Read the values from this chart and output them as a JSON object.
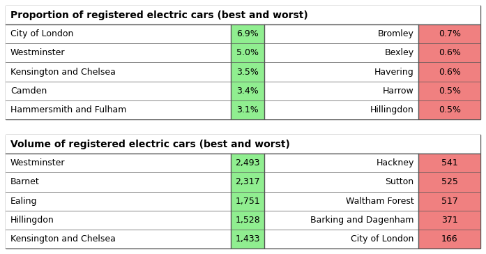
{
  "table1_title": "Proportion of registered electric cars (best and worst)",
  "table1_best": [
    [
      "City of London",
      "6.9%"
    ],
    [
      "Westminster",
      "5.0%"
    ],
    [
      "Kensington and Chelsea",
      "3.5%"
    ],
    [
      "Camden",
      "3.4%"
    ],
    [
      "Hammersmith and Fulham",
      "3.1%"
    ]
  ],
  "table1_worst": [
    [
      "Bromley",
      "0.7%"
    ],
    [
      "Bexley",
      "0.6%"
    ],
    [
      "Havering",
      "0.6%"
    ],
    [
      "Harrow",
      "0.5%"
    ],
    [
      "Hillingdon",
      "0.5%"
    ]
  ],
  "table2_title": "Volume of registered electric cars (best and worst)",
  "table2_best": [
    [
      "Westminster",
      "2,493"
    ],
    [
      "Barnet",
      "2,317"
    ],
    [
      "Ealing",
      "1,751"
    ],
    [
      "Hillingdon",
      "1,528"
    ],
    [
      "Kensington and Chelsea",
      "1,433"
    ]
  ],
  "table2_worst": [
    [
      "Hackney",
      "541"
    ],
    [
      "Sutton",
      "525"
    ],
    [
      "Waltham Forest",
      "517"
    ],
    [
      "Barking and Dagenham",
      "371"
    ],
    [
      "City of London",
      "166"
    ]
  ],
  "green_color": "#90EE90",
  "red_color": "#F08080",
  "border_color": "#555555",
  "font_size": 9.0,
  "title_font_size": 10.0,
  "fig_width": 6.97,
  "fig_height": 3.64,
  "dpi": 100,
  "col_splits": [
    0.0,
    0.48,
    0.545,
    0.86,
    0.92,
    1.0
  ],
  "col_splits2": [
    0.0,
    0.48,
    0.545,
    0.86,
    0.92,
    1.0
  ]
}
